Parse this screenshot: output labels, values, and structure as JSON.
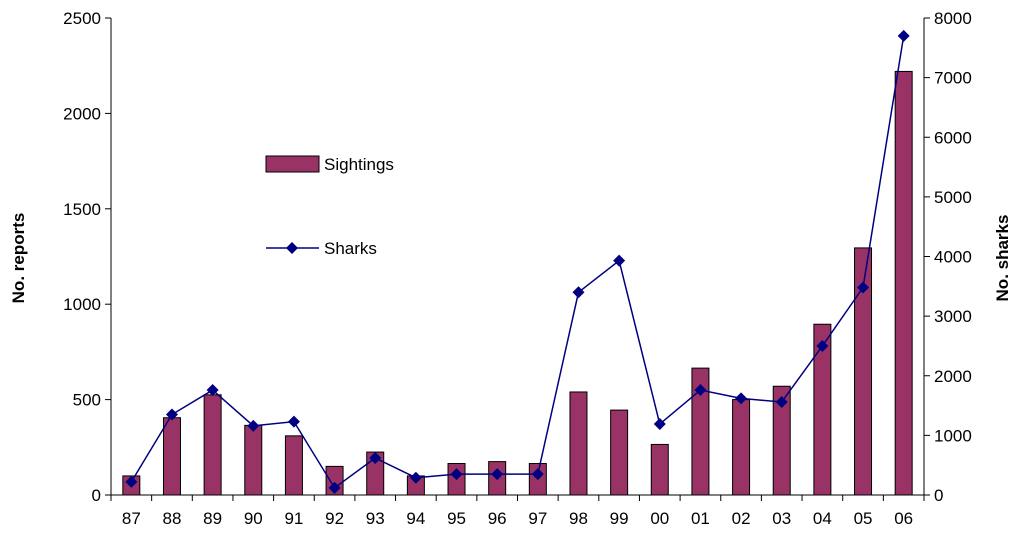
{
  "chart_data": {
    "type": "bar+line",
    "categories": [
      "87",
      "88",
      "89",
      "90",
      "91",
      "92",
      "93",
      "94",
      "95",
      "96",
      "97",
      "98",
      "99",
      "00",
      "01",
      "02",
      "03",
      "04",
      "05",
      "06"
    ],
    "series": [
      {
        "name": "Sightings",
        "type": "bar",
        "axis": "left",
        "color": "#993366",
        "values": [
          100,
          405,
          525,
          365,
          310,
          150,
          225,
          100,
          165,
          175,
          165,
          540,
          445,
          265,
          665,
          500,
          570,
          895,
          1295,
          2220
        ]
      },
      {
        "name": "Sharks",
        "type": "line",
        "axis": "right",
        "color": "#000080",
        "values": [
          220,
          1350,
          1760,
          1160,
          1230,
          120,
          620,
          290,
          350,
          350,
          350,
          3400,
          3930,
          1190,
          1760,
          1620,
          1560,
          2500,
          3480,
          7700
        ]
      }
    ],
    "y_left": {
      "label": "No. reports",
      "range": [
        0,
        2500
      ],
      "ticks": [
        0,
        500,
        1000,
        1500,
        2000,
        2500
      ]
    },
    "y_right": {
      "label": "No. sharks",
      "range": [
        0,
        8000
      ],
      "ticks": [
        0,
        1000,
        2000,
        3000,
        4000,
        5000,
        6000,
        7000,
        8000
      ]
    },
    "xlabel": "",
    "grid": false,
    "legend_position": "upper-left-inside"
  }
}
